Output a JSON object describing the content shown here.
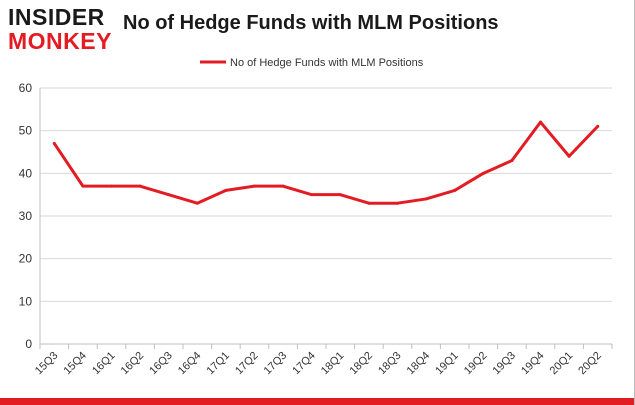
{
  "header": {
    "logo_top": "INSIDER",
    "logo_bottom": "MONKEY",
    "title": "No of Hedge Funds with MLM Positions"
  },
  "colors": {
    "line": "#e31c23",
    "grid": "#d9d9d9",
    "brand_red": "#e31c23"
  },
  "chart_data": {
    "type": "line",
    "title": "No of Hedge Funds with MLM Positions",
    "xlabel": "",
    "ylabel": "",
    "legend": "top-center",
    "grid": true,
    "ylim": [
      0,
      60
    ],
    "yticks": [
      0,
      10,
      20,
      30,
      40,
      50,
      60
    ],
    "categories": [
      "15Q3",
      "15Q4",
      "16Q1",
      "16Q2",
      "16Q3",
      "16Q4",
      "17Q1",
      "17Q2",
      "17Q3",
      "17Q4",
      "18Q1",
      "18Q2",
      "18Q3",
      "18Q4",
      "19Q1",
      "19Q2",
      "19Q3",
      "19Q4",
      "20Q1",
      "20Q2"
    ],
    "series": [
      {
        "name": "No of Hedge Funds with MLM Positions",
        "values": [
          47,
          37,
          37,
          37,
          35,
          33,
          36,
          37,
          37,
          35,
          35,
          33,
          33,
          34,
          36,
          40,
          43,
          52,
          44,
          51
        ]
      }
    ]
  }
}
